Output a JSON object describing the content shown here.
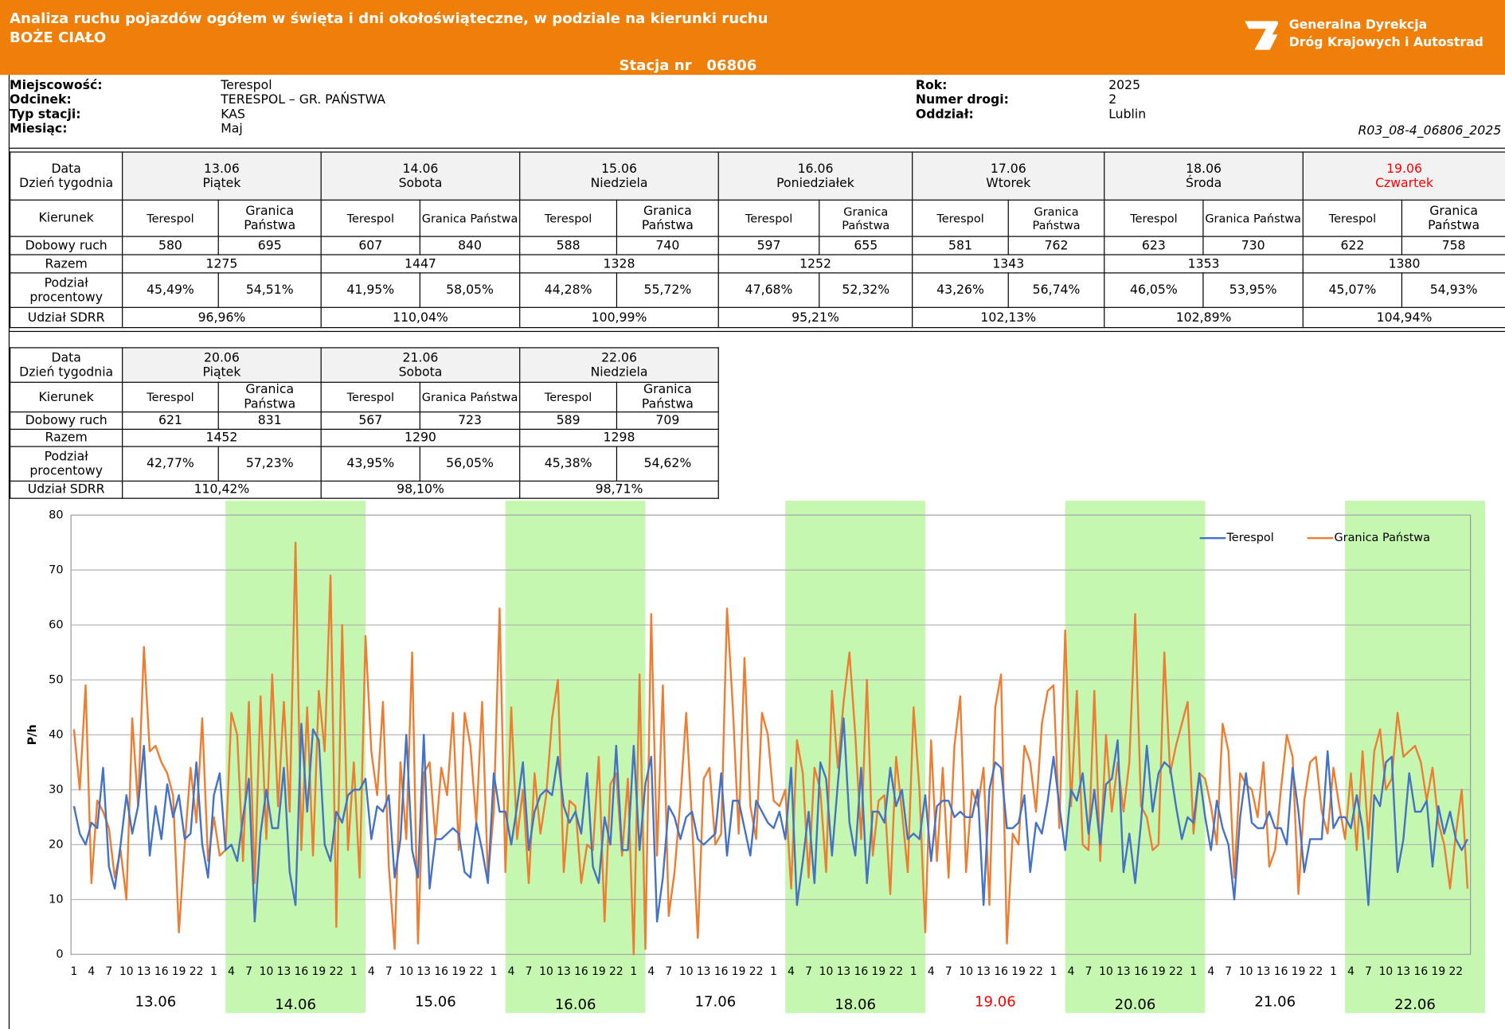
{
  "header": {
    "title": "Analiza ruchu pojazdów ogółem w święta i dni okołoświąteczne, w podziale na kierunki ruchu",
    "subtitle": "BOŻE CIAŁO",
    "station_label": "Stacja nr",
    "station_number": "06806",
    "logo_line1": "Generalna Dyrekcja",
    "logo_line2": "Dróg Krajowych i Autostrad"
  },
  "info": {
    "left": [
      {
        "label": "Miejscowość:",
        "value": "Terespol"
      },
      {
        "label": "Odcinek:",
        "value": "TERESPOL – GR. PAŃSTWA"
      },
      {
        "label": "Typ stacji:",
        "value": "KAS"
      },
      {
        "label": "Miesiąc:",
        "value": "Maj"
      }
    ],
    "right": [
      {
        "label": "Rok:",
        "value": "2025"
      },
      {
        "label": "Numer drogi:",
        "value": "2"
      },
      {
        "label": "Oddział:",
        "value": "Lublin"
      }
    ],
    "code": "R03_08-4_06806_2025"
  },
  "tables": [
    {
      "row_labels": {
        "date": "Data",
        "weekday": "Dzień tygodnia",
        "direction": "Kierunek",
        "daily": "Dobowy ruch",
        "total": "Razem",
        "split": "Podział procentowy",
        "sdrr": "Udział SDRR"
      },
      "days": [
        {
          "date": "13.06",
          "weekday": "Piątek",
          "directions": [
            "Terespol",
            "Granica Państwa"
          ],
          "daily": [
            580,
            695
          ],
          "total": 1275,
          "split": [
            "45,49%",
            "54,51%"
          ],
          "sdrr": "96,96%"
        },
        {
          "date": "14.06",
          "weekday": "Sobota",
          "directions": [
            "Terespol",
            "Granica Państwa"
          ],
          "daily": [
            607,
            840
          ],
          "total": 1447,
          "split": [
            "41,95%",
            "58,05%"
          ],
          "sdrr": "110,04%"
        },
        {
          "date": "15.06",
          "weekday": "Niedziela",
          "directions": [
            "Terespol",
            "Granica Państwa"
          ],
          "daily": [
            588,
            740
          ],
          "total": 1328,
          "split": [
            "44,28%",
            "55,72%"
          ],
          "sdrr": "100,99%"
        },
        {
          "date": "16.06",
          "weekday": "Poniedziałek",
          "directions": [
            "Terespol",
            "Granica Państwa"
          ],
          "daily": [
            597,
            655
          ],
          "total": 1252,
          "split": [
            "47,68%",
            "52,32%"
          ],
          "sdrr": "95,21%"
        },
        {
          "date": "17.06",
          "weekday": "Wtorek",
          "directions": [
            "Terespol",
            "Granica Państwa"
          ],
          "daily": [
            581,
            762
          ],
          "total": 1343,
          "split": [
            "43,26%",
            "56,74%"
          ],
          "sdrr": "102,13%"
        },
        {
          "date": "18.06",
          "weekday": "Środa",
          "directions": [
            "Terespol",
            "Granica Państwa"
          ],
          "daily": [
            623,
            730
          ],
          "total": 1353,
          "split": [
            "46,05%",
            "53,95%"
          ],
          "sdrr": "102,89%"
        },
        {
          "date": "19.06",
          "weekday": "Czwartek",
          "color": "#ff0000",
          "directions": [
            "Terespol",
            "Granica Państwa"
          ],
          "daily": [
            622,
            758
          ],
          "total": 1380,
          "split": [
            "45,07%",
            "54,93%"
          ],
          "sdrr": "104,94%"
        }
      ]
    },
    {
      "row_labels": {
        "date": "Data",
        "weekday": "Dzień tygodnia",
        "direction": "Kierunek",
        "daily": "Dobowy ruch",
        "total": "Razem",
        "split": "Podział procentowy",
        "sdrr": "Udział SDRR"
      },
      "days": [
        {
          "date": "20.06",
          "weekday": "Piątek",
          "directions": [
            "Terespol",
            "Granica Państwa"
          ],
          "daily": [
            621,
            831
          ],
          "total": 1452,
          "split": [
            "42,77%",
            "57,23%"
          ],
          "sdrr": "110,42%"
        },
        {
          "date": "21.06",
          "weekday": "Sobota",
          "directions": [
            "Terespol",
            "Granica Państwa"
          ],
          "daily": [
            567,
            723
          ],
          "total": 1290,
          "split": [
            "43,95%",
            "56,05%"
          ],
          "sdrr": "98,10%"
        },
        {
          "date": "22.06",
          "weekday": "Niedziela",
          "directions": [
            "Terespol",
            "Granica Państwa"
          ],
          "daily": [
            589,
            709
          ],
          "total": 1298,
          "split": [
            "45,38%",
            "54,62%"
          ],
          "sdrr": "98,71%"
        }
      ]
    }
  ],
  "chart_data": {
    "type": "line",
    "ylabel": "P/h",
    "ylim": [
      0,
      80
    ],
    "yticks": [
      0,
      10,
      20,
      30,
      40,
      50,
      60,
      70,
      80
    ],
    "grid": true,
    "legend": "top-right",
    "highlight_color": "#c6f7b0",
    "categories": [
      1,
      null,
      null,
      4,
      null,
      null,
      7,
      null,
      null,
      10,
      null,
      null,
      13,
      null,
      null,
      16,
      null,
      null,
      19,
      null,
      null,
      22,
      null,
      null,
      1,
      null,
      null,
      4,
      null,
      null,
      7,
      null,
      null,
      10,
      null,
      null,
      13,
      null,
      null,
      16,
      null,
      null,
      19,
      null,
      null,
      22,
      null,
      null,
      1,
      null,
      null,
      4,
      null,
      null,
      7,
      null,
      null,
      10,
      null,
      null,
      13,
      null,
      null,
      16,
      null,
      null,
      19,
      null,
      null,
      22,
      null,
      null,
      1,
      null,
      null,
      4,
      null,
      null,
      7,
      null,
      null,
      10,
      null,
      null,
      13,
      null,
      null,
      16,
      null,
      null,
      19,
      null,
      null,
      22,
      null,
      null,
      1,
      null,
      null,
      4,
      null,
      null,
      7,
      null,
      null,
      10,
      null,
      null,
      13,
      null,
      null,
      16,
      null,
      null,
      19,
      null,
      null,
      22,
      null,
      null,
      1,
      null,
      null,
      4,
      null,
      null,
      7,
      null,
      null,
      10,
      null,
      null,
      13,
      null,
      null,
      16,
      null,
      null,
      19,
      null,
      null,
      22,
      null,
      null,
      1,
      null,
      null,
      4,
      null,
      null,
      7,
      null,
      null,
      10,
      null,
      null,
      13,
      null,
      null,
      16,
      null,
      null,
      19,
      null,
      null,
      22,
      null,
      null,
      1,
      null,
      null,
      4,
      null,
      null,
      7,
      null,
      null,
      10,
      null,
      null,
      13,
      null,
      null,
      16,
      null,
      null,
      19,
      null,
      null,
      22,
      null,
      null,
      1,
      null,
      null,
      4,
      null,
      null,
      7,
      null,
      null,
      10,
      null,
      null,
      13,
      null,
      null,
      16,
      null,
      null,
      19,
      null,
      null,
      22,
      null,
      null,
      1,
      null,
      null,
      4,
      null,
      null,
      7,
      null,
      null,
      10,
      null,
      null,
      13,
      null,
      null,
      16,
      null,
      null,
      19,
      null,
      null,
      22,
      null,
      null
    ],
    "day_labels": [
      {
        "label": "13.06",
        "highlight": false
      },
      {
        "label": "14.06",
        "highlight": true
      },
      {
        "label": "15.06",
        "highlight": false
      },
      {
        "label": "16.06",
        "highlight": true
      },
      {
        "label": "17.06",
        "highlight": false
      },
      {
        "label": "18.06",
        "highlight": true
      },
      {
        "label": "19.06",
        "highlight": false,
        "color": "#ff0000"
      },
      {
        "label": "20.06",
        "highlight": true
      },
      {
        "label": "21.06",
        "highlight": false
      },
      {
        "label": "22.06",
        "highlight": true
      }
    ],
    "series": [
      {
        "name": "Terespol",
        "color": "#4472c4",
        "values": [
          27,
          22,
          20,
          24,
          23,
          34,
          16,
          12,
          20,
          29,
          22,
          27,
          38,
          18,
          27,
          21,
          31,
          25,
          29,
          21,
          22,
          35,
          20,
          14,
          29,
          33,
          19,
          20,
          17,
          25,
          32,
          6,
          22,
          30,
          23,
          23,
          34,
          15,
          9,
          42,
          26,
          41,
          39,
          20,
          17,
          26,
          24,
          29,
          30,
          30,
          32,
          21,
          27,
          26,
          29,
          14,
          21,
          40,
          19,
          14,
          40,
          12,
          21,
          21,
          22,
          23,
          22,
          15,
          14,
          24,
          19,
          13,
          33,
          26,
          26,
          20,
          27,
          35,
          19,
          26,
          29,
          30,
          29,
          36,
          27,
          24,
          26,
          22,
          33,
          16,
          13,
          25,
          20,
          38,
          19,
          19,
          38,
          19,
          31,
          36,
          6,
          14,
          27,
          25,
          21,
          25,
          26,
          21,
          20,
          21,
          22,
          33,
          18,
          28,
          28,
          23,
          18,
          28,
          26,
          24,
          23,
          26,
          21,
          34,
          9,
          17,
          26,
          13,
          35,
          32,
          18,
          31,
          43,
          24,
          18,
          34,
          13,
          26,
          26,
          24,
          34,
          27,
          30,
          21,
          22,
          21,
          29,
          17,
          27,
          28,
          28,
          25,
          26,
          25,
          25,
          30,
          9,
          30,
          35,
          34,
          23,
          23,
          24,
          29,
          15,
          24,
          22,
          28,
          36,
          27,
          19,
          30,
          28,
          33,
          22,
          30,
          20,
          31,
          32,
          39,
          15,
          22,
          13,
          24,
          38,
          26,
          33,
          35,
          34,
          27,
          21,
          25,
          24,
          33,
          25,
          19,
          28,
          23,
          20,
          10,
          25,
          33,
          24,
          23,
          23,
          26,
          23,
          23,
          20,
          34,
          26,
          15,
          21,
          21,
          21,
          37,
          23,
          25,
          25,
          23,
          29,
          23,
          9,
          29,
          27,
          35,
          36,
          15,
          21,
          33,
          26,
          26,
          28,
          16,
          27,
          22,
          26,
          21,
          19,
          21
        ]
      },
      {
        "name": "Granica Państwa",
        "color": "#ed7d31",
        "values": [
          41,
          30,
          49,
          13,
          28,
          26,
          23,
          14,
          19,
          10,
          43,
          27,
          56,
          37,
          38,
          35,
          33,
          29,
          4,
          20,
          34,
          24,
          43,
          17,
          25,
          18,
          19,
          44,
          40,
          17,
          46,
          13,
          47,
          21,
          51,
          27,
          46,
          26,
          75,
          19,
          45,
          18,
          48,
          37,
          69,
          5,
          60,
          19,
          35,
          14,
          58,
          37,
          29,
          46,
          16,
          1,
          35,
          21,
          55,
          2,
          33,
          35,
          21,
          34,
          29,
          44,
          19,
          44,
          38,
          24,
          46,
          14,
          26,
          63,
          15,
          45,
          21,
          30,
          13,
          33,
          22,
          29,
          43,
          50,
          15,
          28,
          27,
          13,
          20,
          19,
          36,
          6,
          31,
          33,
          18,
          32,
          0,
          51,
          1,
          62,
          18,
          49,
          7,
          15,
          28,
          44,
          24,
          3,
          32,
          34,
          20,
          22,
          63,
          45,
          22,
          54,
          27,
          21,
          44,
          40,
          28,
          27,
          30,
          12,
          39,
          33,
          14,
          34,
          30,
          15,
          48,
          34,
          46,
          55,
          40,
          21,
          50,
          18,
          28,
          29,
          11,
          36,
          26,
          15,
          45,
          30,
          4,
          39,
          17,
          34,
          14,
          38,
          47,
          15,
          30,
          27,
          34,
          9,
          45,
          51,
          2,
          22,
          20,
          38,
          35,
          26,
          42,
          48,
          49,
          23,
          59,
          27,
          48,
          20,
          19,
          48,
          17,
          40,
          26,
          35,
          26,
          35,
          62,
          27,
          25,
          19,
          20,
          55,
          33,
          38,
          42,
          46,
          22,
          33,
          32,
          27,
          20,
          42,
          37,
          14,
          33,
          31,
          30,
          25,
          35,
          16,
          19,
          30,
          40,
          36,
          11,
          28,
          35,
          36,
          26,
          22,
          34,
          27,
          21,
          33,
          19,
          37,
          21,
          37,
          41,
          30,
          32,
          44,
          36,
          37,
          38,
          35,
          28,
          34,
          24,
          20,
          12,
          22,
          30,
          12
        ]
      }
    ]
  }
}
